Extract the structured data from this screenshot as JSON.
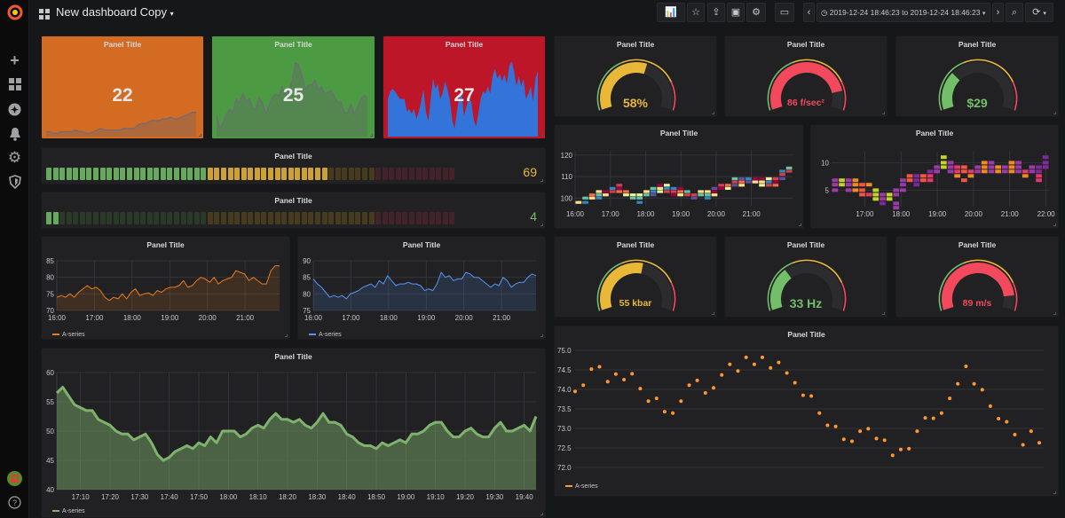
{
  "header": {
    "title": "New dashboard Copy",
    "time_range": "2019-12-24 18:46:23 to 2019-12-24 18:46:23",
    "icons": [
      "grafana-logo",
      "dashboard-grid-icon",
      "add-panel-icon",
      "star-icon",
      "share-icon",
      "save-icon",
      "settings-icon",
      "tv-mode-icon",
      "chevron-left-icon",
      "clock-icon",
      "chevron-right-icon",
      "zoom-out-icon",
      "refresh-icon"
    ]
  },
  "sidebar": {
    "icons": [
      "plus-icon",
      "dashboards-icon",
      "explore-icon",
      "alerting-bell-icon",
      "configuration-gear-icon",
      "server-admin-shield-icon",
      "user-avatar",
      "help-icon"
    ]
  },
  "colors": {
    "green": "#73bf69",
    "yellow": "#eab839",
    "red": "#f2495c",
    "orange_bg": "#d46b22",
    "green_bg": "#4c9a41",
    "red_bg": "#bd1628",
    "blue": "#3274d9",
    "series_orange": "#eb7b18",
    "series_blue": "#5794f2",
    "series_green": "#7eb26d"
  },
  "singlestats": [
    {
      "title": "Panel Title",
      "value": "22",
      "bg": "#d46b22",
      "spark": [
        3,
        3,
        2,
        2,
        3,
        3,
        3,
        3,
        4,
        3,
        3,
        2,
        2,
        3,
        4,
        5,
        4,
        4,
        4,
        4,
        4,
        5,
        5,
        5,
        5,
        7,
        8,
        8,
        9,
        10,
        10,
        10,
        11,
        11,
        12,
        11,
        11,
        12,
        13,
        14,
        15,
        15
      ]
    },
    {
      "title": "Panel Title",
      "value": "25",
      "bg": "#4c9a41",
      "spark": [
        12,
        5,
        8,
        13,
        16,
        14,
        22,
        20,
        25,
        21,
        22,
        17,
        16,
        23,
        20,
        13,
        18,
        23,
        25,
        24,
        29,
        24,
        27,
        32,
        43,
        42,
        36,
        28,
        30,
        30,
        33,
        27,
        29,
        25,
        26,
        27,
        23,
        20,
        20,
        14,
        14,
        19,
        13,
        17,
        22,
        24,
        23
      ]
    },
    {
      "title": "Panel Title",
      "value": "27",
      "bg": "#bd1628",
      "spark": [
        30,
        36,
        38,
        36,
        33,
        30,
        30,
        30,
        20,
        22,
        18,
        22,
        14,
        20,
        28,
        38,
        20,
        12,
        30,
        46,
        38,
        42,
        30,
        34,
        44,
        38,
        30,
        14,
        6,
        20,
        32,
        34,
        16,
        24,
        30,
        28,
        14,
        8,
        18,
        30,
        36,
        34,
        40,
        34,
        48,
        54,
        46,
        50,
        44,
        50,
        42,
        56,
        60,
        52,
        40,
        48,
        40,
        46,
        30,
        34,
        40,
        28,
        46,
        52
      ]
    }
  ],
  "gauges_row1": [
    {
      "title": "Panel Title",
      "value": 58,
      "display": "58%"
    },
    {
      "title": "Panel Title",
      "value": 86,
      "display": "86 f/sec²"
    },
    {
      "title": "Panel Title",
      "value": 29,
      "display": "$29"
    }
  ],
  "gauges_row2": [
    {
      "title": "Panel Title",
      "value": 55,
      "display": "55 kbar"
    },
    {
      "title": "Panel Title",
      "value": 33,
      "display": "33 Hz"
    },
    {
      "title": "Panel Title",
      "value": 89,
      "display": "89 m/s"
    }
  ],
  "gauge_config": {
    "min": 0,
    "max": 100,
    "thresholds": [
      {
        "from": 0,
        "color": "#73bf69"
      },
      {
        "from": 40,
        "color": "#eab839"
      },
      {
        "from": 80,
        "color": "#f2495c"
      }
    ]
  },
  "bar_gauges": [
    {
      "title": "Panel Title",
      "value": 69,
      "display": "69",
      "color": "#eab839"
    },
    {
      "title": "Panel Title",
      "value": 4,
      "display": "4",
      "color": "#73bf69"
    }
  ],
  "chart_data": [
    {
      "type": "heatmap",
      "title": "Panel Title",
      "x_ticks": [
        "16:00",
        "17:00",
        "18:00",
        "19:00",
        "20:00",
        "21:00"
      ],
      "x_range": [
        "16:00",
        "22:10"
      ],
      "y_ticks": [
        "100",
        "110",
        "120"
      ],
      "ylim": [
        96,
        122
      ],
      "palette": [
        "#9e0142",
        "#f46d43",
        "#fee08b",
        "#e6f598",
        "#66c2a5",
        "#3288bd",
        "#d53e4f",
        "#5e4fa2"
      ],
      "columns": [
        [
          98
        ],
        [
          98,
          100
        ],
        [
          100,
          101.5
        ],
        [
          100,
          101.5,
          103
        ],
        [
          101.5,
          103
        ],
        [
          103,
          104.5
        ],
        [
          103,
          104.5,
          106
        ],
        [
          101.5,
          103
        ],
        [
          100,
          101.5
        ],
        [
          98,
          100,
          101.5
        ],
        [
          101.5,
          103
        ],
        [
          101.5,
          103,
          104.5
        ],
        [
          103,
          104.5,
          106
        ],
        [
          103,
          104.5,
          106
        ],
        [
          101.5,
          103,
          104.5
        ],
        [
          101.5,
          103,
          104.5
        ],
        [
          101.5,
          103
        ],
        [
          100,
          101.5
        ],
        [
          101.5,
          103
        ],
        [
          100,
          101.5,
          103
        ],
        [
          101.5,
          103,
          104.5
        ],
        [
          104.5,
          106
        ],
        [
          104.5,
          106
        ],
        [
          106,
          107.5,
          109
        ],
        [
          106,
          107.5,
          109
        ],
        [
          107.5,
          109
        ],
        [
          107.5,
          109
        ],
        [
          106,
          107.5,
          109
        ],
        [
          106,
          107.5,
          109
        ],
        [
          106,
          107.5,
          109
        ],
        [
          109,
          111,
          112.5
        ],
        [
          112.5,
          114
        ]
      ]
    },
    {
      "type": "heatmap",
      "title": "Panel Title",
      "x_ticks": [
        "17:00",
        "18:00",
        "19:00",
        "20:00",
        "21:00",
        "22:00"
      ],
      "x_range": [
        "16:05",
        "22:05"
      ],
      "y_ticks": [
        "5",
        "10"
      ],
      "ylim": [
        2,
        12
      ],
      "palette": [
        "#7e2a9e",
        "#e8376b",
        "#f08a24",
        "#c4d32b",
        "#f5563e",
        "#9c3ba8"
      ],
      "columns": [
        [
          5,
          6,
          6.8
        ],
        [
          6,
          6.8
        ],
        [
          5,
          6,
          6.8
        ],
        [
          5,
          6,
          6.8
        ],
        [
          4.2,
          5,
          6
        ],
        [
          4.2,
          6
        ],
        [
          3.4,
          4.2,
          5
        ],
        [
          2.6,
          3.4,
          4.2
        ],
        [
          3.4,
          4.2
        ],
        [
          1.8,
          2.6,
          4.2,
          5
        ],
        [
          5,
          6,
          6.8
        ],
        [
          6.8,
          7.6
        ],
        [
          6,
          6.8,
          7.6
        ],
        [
          6.8,
          7.6
        ],
        [
          6.8,
          7.6,
          8.4
        ],
        [
          8.4,
          9.2
        ],
        [
          9.2,
          10,
          11
        ],
        [
          8.4,
          9.2,
          10
        ],
        [
          7.6,
          8.4,
          9.2
        ],
        [
          6.8,
          8.4,
          9.2
        ],
        [
          7.6,
          8.4
        ],
        [
          8.4,
          9.2
        ],
        [
          8.4,
          9.2,
          10
        ],
        [
          8.4,
          9.2,
          10
        ],
        [
          8.4,
          9.2
        ],
        [
          8.4,
          9.2
        ],
        [
          8.4,
          9.2,
          10
        ],
        [
          8.4,
          9.2,
          10
        ],
        [
          7.6,
          8.4
        ],
        [
          8.4,
          9.2
        ],
        [
          6.8,
          7.6,
          8.4,
          9.2
        ],
        [
          9.2,
          10,
          11
        ]
      ]
    },
    {
      "type": "area",
      "title": "Panel Title",
      "x_range": [
        "16:00",
        "21:55"
      ],
      "x_ticks": [
        "16:00",
        "17:00",
        "18:00",
        "19:00",
        "20:00",
        "21:00"
      ],
      "y_ticks": [
        "70",
        "75",
        "80",
        "85"
      ],
      "ylim": [
        70,
        85
      ],
      "legend": "bottom-left",
      "grid": true,
      "series": [
        {
          "name": "A-series",
          "color": "#eb7b18",
          "values": [
            74,
            74.5,
            74,
            75,
            74,
            75.5,
            76.5,
            77.5,
            76.5,
            77,
            76,
            74,
            73,
            74,
            73.5,
            75,
            73.5,
            75.5,
            76.5,
            74.5,
            75,
            75.3,
            74.5,
            76,
            75.5,
            76.5,
            77,
            77,
            77.5,
            79,
            77,
            77.5,
            79,
            80,
            79.5,
            78.5,
            80,
            78,
            79,
            79.5,
            80,
            82,
            81.5,
            81,
            79,
            80,
            79,
            78,
            78,
            82,
            83.5,
            83.5
          ]
        }
      ]
    },
    {
      "type": "area",
      "title": "Panel Title",
      "x_range": [
        "16:00",
        "21:55"
      ],
      "x_ticks": [
        "16:00",
        "17:00",
        "18:00",
        "19:00",
        "20:00",
        "21:00"
      ],
      "y_ticks": [
        "75",
        "80",
        "85",
        "90"
      ],
      "ylim": [
        75,
        90
      ],
      "legend": "bottom-left",
      "grid": true,
      "series": [
        {
          "name": "A-series",
          "color": "#5794f2",
          "values": [
            84.5,
            83,
            82,
            80.5,
            79,
            79.5,
            79,
            79.5,
            78.5,
            80,
            80.5,
            81,
            82,
            82.5,
            83,
            82,
            84,
            83,
            85.5,
            84,
            82.5,
            83,
            83,
            83.5,
            83,
            83,
            82.5,
            81,
            81.5,
            81,
            83,
            86.5,
            85,
            85.5,
            84,
            84.5,
            84.5,
            86.5,
            86,
            85,
            85,
            84,
            83,
            82,
            83,
            82.5,
            85,
            84,
            82,
            83,
            83.5,
            83.5,
            85,
            86,
            85.5
          ]
        }
      ]
    },
    {
      "type": "area",
      "title": "Panel Title",
      "x_range": [
        "17:02",
        "19:44"
      ],
      "x_ticks": [
        "17:10",
        "17:20",
        "17:30",
        "17:40",
        "17:50",
        "18:00",
        "18:10",
        "18:20",
        "18:30",
        "18:40",
        "18:50",
        "19:00",
        "19:10",
        "19:20",
        "19:30",
        "19:40"
      ],
      "y_ticks": [
        "40",
        "45",
        "50",
        "55",
        "60"
      ],
      "ylim": [
        40,
        60
      ],
      "legend": "bottom-left",
      "grid": true,
      "series": [
        {
          "name": "A-series",
          "color": "#7eb26d",
          "values": [
            56.5,
            57.5,
            56,
            54.5,
            54,
            53.5,
            53.5,
            52,
            51.5,
            51,
            50,
            49.5,
            49.5,
            48.5,
            49,
            49.5,
            48,
            46,
            45,
            45.5,
            46.5,
            47,
            47.5,
            47,
            48,
            47.5,
            49,
            48,
            50,
            50,
            50,
            49,
            49.5,
            50.5,
            51,
            50.5,
            52,
            53,
            52,
            52,
            51.5,
            52,
            51,
            50.5,
            51.5,
            53,
            51.5,
            51.5,
            51,
            49.5,
            49,
            48,
            47.5,
            47.5,
            47,
            48,
            47.5,
            48,
            48.5,
            48,
            49.5,
            49.5,
            50,
            51,
            51.5,
            51.5,
            50,
            49,
            49,
            50,
            50.5,
            49.5,
            49,
            49,
            50.5,
            51.5,
            50,
            50,
            50.5,
            51,
            50,
            52.5
          ]
        }
      ]
    },
    {
      "type": "scatter",
      "title": "Panel Title",
      "y_ticks": [
        "72.0",
        "72.5",
        "73.0",
        "73.5",
        "74.0",
        "74.5",
        "75.0"
      ],
      "ylim": [
        72,
        75
      ],
      "legend": "bottom-left",
      "grid": true,
      "series": [
        {
          "name": "A-series",
          "color": "#ff9830",
          "values": [
            73.95,
            74.11,
            74.52,
            74.58,
            74.2,
            74.39,
            74.25,
            74.4,
            74.02,
            73.7,
            73.77,
            73.43,
            73.39,
            73.7,
            74.11,
            74.23,
            73.91,
            74.04,
            74.37,
            74.64,
            74.47,
            74.82,
            74.64,
            74.82,
            74.55,
            74.69,
            74.42,
            74.17,
            73.85,
            73.83,
            73.39,
            73.08,
            73.05,
            72.72,
            72.67,
            72.93,
            72.99,
            72.74,
            72.7,
            72.31,
            72.46,
            72.48,
            72.93,
            73.27,
            73.26,
            73.39,
            73.77,
            74.14,
            74.59,
            74.14,
            73.99,
            73.57,
            73.25,
            73.17,
            72.84,
            72.58,
            72.93,
            72.63
          ]
        }
      ]
    }
  ]
}
